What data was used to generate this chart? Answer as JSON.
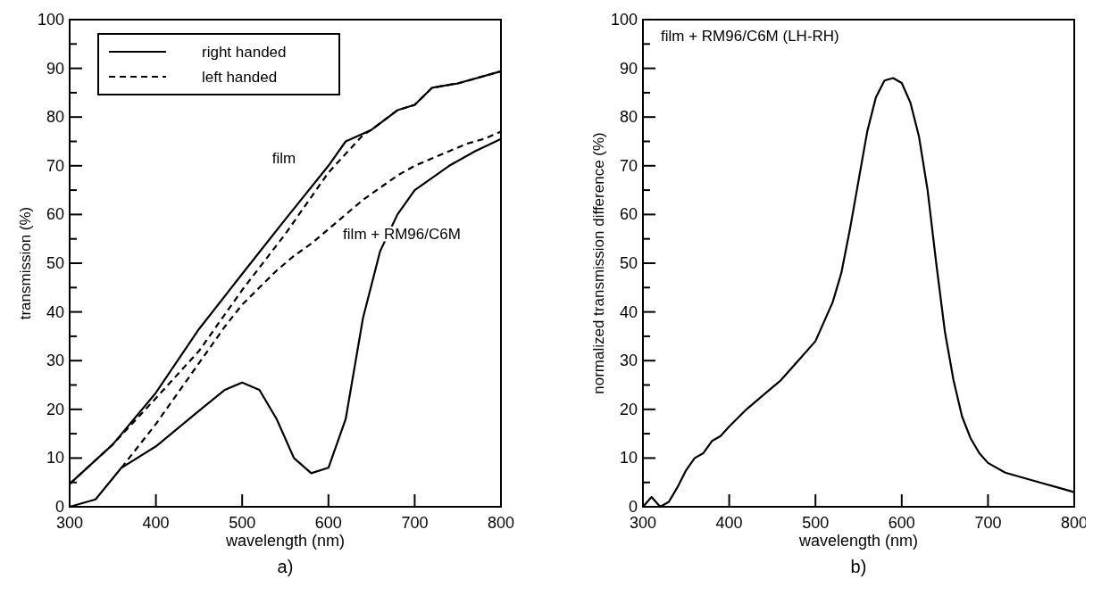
{
  "chart_data": [
    {
      "type": "line",
      "xlabel": "wavelength (nm)",
      "ylabel": "transmission (%)",
      "xlim": [
        300,
        800
      ],
      "ylim": [
        0,
        100
      ],
      "xticks": [
        300,
        400,
        500,
        600,
        700,
        800
      ],
      "yticks": [
        0,
        {
          "value": 5,
          "label": null
        },
        10,
        {
          "value": 15,
          "label": null
        },
        20,
        {
          "value": 25,
          "label": null
        },
        30,
        {
          "value": 35,
          "label": null
        },
        40,
        {
          "value": 45,
          "label": null
        },
        50,
        {
          "value": 55,
          "label": null
        },
        60,
        {
          "value": 65,
          "label": null
        },
        70,
        {
          "value": 75,
          "label": null
        },
        80,
        {
          "value": 85,
          "label": null
        },
        90,
        {
          "value": 95,
          "label": null
        },
        100
      ],
      "grid": false,
      "legend": "top left",
      "annotations": [
        "film",
        "film + RM96/C6M",
        "a)"
      ],
      "series": [
        {
          "name": "right handed",
          "color": "#000000",
          "line_style": "solid",
          "x": [
            300,
            350,
            400,
            450,
            500,
            550,
            600,
            620,
            650,
            680,
            700,
            720,
            750,
            800
          ],
          "values": [
            4.7,
            12.8,
            23.4,
            36.5,
            47.8,
            59,
            70,
            75,
            77.4,
            81.4,
            82.5,
            86,
            86.9,
            89.4
          ]
        },
        {
          "name": "left handed",
          "color": "#000000",
          "line_style": "dashed",
          "x": [
            300,
            350,
            400,
            450,
            500,
            550,
            600,
            640,
            650,
            680,
            700,
            720,
            750,
            800
          ],
          "values": [
            4.7,
            12.8,
            22.3,
            32,
            44.5,
            56,
            68.6,
            76.3,
            77.4,
            81.4,
            82.5,
            86,
            86.9,
            89.4
          ]
        },
        {
          "color": "#000000",
          "line_style": "solid",
          "x": [
            300,
            330,
            360,
            400,
            450,
            480,
            500,
            520,
            540,
            560,
            580,
            600,
            620,
            640,
            660,
            680,
            700,
            740,
            770,
            800
          ],
          "values": [
            0,
            1.5,
            8,
            12.4,
            19.7,
            24,
            25.5,
            24,
            18,
            10,
            6.9,
            8,
            18,
            38.7,
            52.5,
            60,
            65,
            70,
            73,
            75.5
          ]
        },
        {
          "color": "#000000",
          "line_style": "dashed",
          "x": [
            360,
            380,
            400,
            420,
            440,
            460,
            480,
            500,
            520,
            540,
            560,
            580,
            600,
            620,
            640,
            660,
            680,
            700,
            720,
            740,
            760,
            780,
            800
          ],
          "values": [
            8,
            12.5,
            17,
            22,
            27,
            32,
            37,
            41.5,
            45,
            48.5,
            51.5,
            54,
            57,
            60,
            63,
            65.5,
            68,
            70,
            71.5,
            73,
            74.5,
            75.5,
            77
          ]
        }
      ]
    },
    {
      "type": "line",
      "title": "film + RM96/C6M (LH-RH)",
      "xlabel": "wavelength (nm)",
      "ylabel": "normalized transmission difference (%)",
      "xlim": [
        300,
        800
      ],
      "ylim": [
        0,
        100
      ],
      "xticks": [
        300,
        400,
        500,
        600,
        700,
        800
      ],
      "yticks": [
        0,
        {
          "value": 5,
          "label": null
        },
        10,
        {
          "value": 15,
          "label": null
        },
        20,
        {
          "value": 25,
          "label": null
        },
        30,
        {
          "value": 35,
          "label": null
        },
        40,
        {
          "value": 45,
          "label": null
        },
        50,
        {
          "value": 55,
          "label": null
        },
        60,
        {
          "value": 65,
          "label": null
        },
        70,
        {
          "value": 75,
          "label": null
        },
        80,
        {
          "value": 85,
          "label": null
        },
        90,
        {
          "value": 95,
          "label": null
        },
        100
      ],
      "grid": false,
      "annotations": [
        "b)"
      ],
      "series": [
        {
          "color": "#000000",
          "line_style": "solid",
          "x": [
            300,
            310,
            320,
            330,
            340,
            350,
            360,
            370,
            380,
            390,
            400,
            420,
            440,
            460,
            480,
            500,
            520,
            530,
            540,
            550,
            560,
            570,
            580,
            590,
            600,
            610,
            620,
            630,
            640,
            650,
            660,
            670,
            680,
            690,
            700,
            720,
            740,
            760,
            780,
            800
          ],
          "values": [
            0,
            2,
            0,
            1,
            4,
            7.5,
            10,
            11,
            13.5,
            14.5,
            16.5,
            20,
            23,
            26,
            30,
            34,
            42,
            48,
            57,
            67,
            77,
            84,
            87.5,
            88,
            87,
            83,
            76,
            65,
            50,
            36,
            26,
            18.5,
            14,
            11,
            9,
            7,
            6,
            5,
            4,
            3
          ]
        }
      ]
    }
  ]
}
